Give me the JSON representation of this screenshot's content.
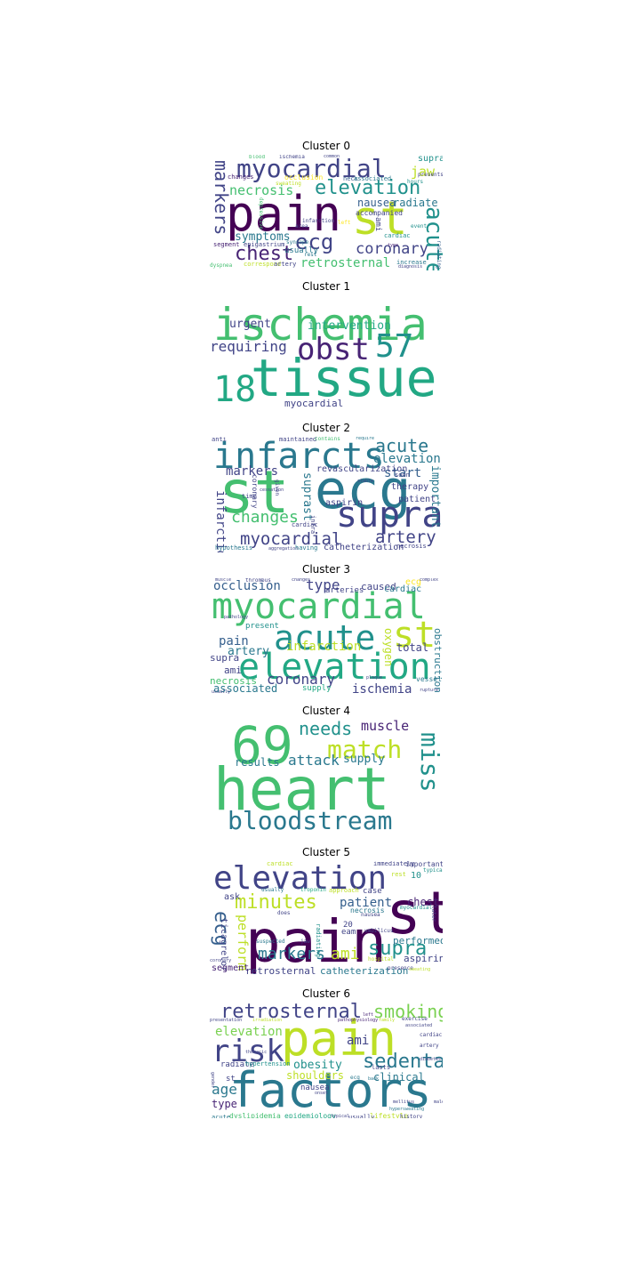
{
  "chart_data": {
    "type": "wordcloud",
    "colormap": "viridis",
    "panels": [
      {
        "title": "Cluster 0",
        "words": [
          "pain",
          "st",
          "myocardial",
          "elevation",
          "ecg",
          "markers",
          "necrosis",
          "chest",
          "coronary",
          "acute",
          "symptoms",
          "retrosternal",
          "jaw",
          "nausea",
          "radiate",
          "supra",
          "accompanied",
          "usually",
          "cardiac",
          "ami",
          "blood",
          "ischemia",
          "common",
          "changes",
          "occlusion",
          "sweating",
          "neck",
          "associated",
          "presents",
          "infarction",
          "hours",
          "area",
          "epigastrium",
          "syncope",
          "segment",
          "dyspnea",
          "correspond",
          "artery",
          "rest",
          "increase",
          "diagnosis",
          "radiating",
          "type",
          "event",
          "left",
          "depressive"
        ]
      },
      {
        "title": "Cluster 1",
        "words": [
          "ischemia",
          "tissue",
          "obst",
          "57",
          "18",
          "requiring",
          "intervention",
          "urgent",
          "myocardial"
        ]
      },
      {
        "title": "Cluster 2",
        "words": [
          "st",
          "ecg",
          "infarcts",
          "supra",
          "acute",
          "elevation",
          "changes",
          "myocardial",
          "artery",
          "markers",
          "start",
          "infarction",
          "suprast",
          "revascularization",
          "therapy",
          "aspirin",
          "patient",
          "important",
          "catheterization",
          "coronary",
          "time",
          "necrosis",
          "anti",
          "maintained",
          "contains",
          "require",
          "soon",
          "cardiac",
          "hypothesis",
          "aggregation",
          "having",
          "given",
          "infra",
          "cessation",
          "stable"
        ]
      },
      {
        "title": "Cluster 3",
        "words": [
          "myocardial",
          "elevation",
          "acute",
          "st",
          "coronary",
          "occlusion",
          "type",
          "pain",
          "infarction",
          "artery",
          "ischemia",
          "associated",
          "necrosis",
          "supra",
          "ami",
          "total",
          "oxygen",
          "obstruction",
          "present",
          "caused",
          "ecg",
          "cardiac",
          "arteries",
          "supply",
          "vessel",
          "thrombus",
          "muscle",
          "changes",
          "pathology",
          "plaque",
          "usually",
          "rupture",
          "complex"
        ]
      },
      {
        "title": "Cluster 4",
        "words": [
          "heart",
          "69",
          "bloodstream",
          "match",
          "miss",
          "needs",
          "muscle",
          "attack",
          "supply",
          "results"
        ]
      },
      {
        "title": "Cluster 5",
        "words": [
          "pain",
          "st",
          "elevation",
          "minutes",
          "ecg",
          "supra",
          "markers",
          "ami",
          "patient",
          "chest",
          "perform",
          "ticagrelor",
          "retrosternal",
          "catheterization",
          "segment",
          "performed",
          "aspirin",
          "cardiac",
          "immediately",
          "important",
          "10",
          "typical",
          "rest",
          "ask",
          "usually",
          "troponin",
          "approach",
          "case",
          "nausea",
          "necrosis",
          "myocardial",
          "20",
          "eam",
          "does",
          "radiating",
          "suspected",
          "jaw",
          "umbilicus",
          "hospital",
          "presence",
          "sweating",
          "coronary",
          "later"
        ]
      },
      {
        "title": "Cluster 6",
        "words": [
          "pain",
          "factors",
          "risk",
          "retrosternal",
          "smoking",
          "sedentary",
          "elevation",
          "obesity",
          "age",
          "shoulders",
          "clinical",
          "ami",
          "radiate",
          "hypertension",
          "type",
          "st",
          "nausea",
          "lasts",
          "epidemiology",
          "dyslipidemia",
          "lifestyle",
          "usually",
          "history",
          "acute",
          "presentation",
          "irradiation",
          "pathophysiology",
          "family",
          "exercise",
          "associated",
          "cardiac",
          "artery",
          "diabetes",
          "thoracic",
          "mellitus",
          "hypersweating",
          "ecg",
          "gender",
          "typical",
          "onset",
          "male",
          "left",
          "back"
        ]
      }
    ]
  }
}
